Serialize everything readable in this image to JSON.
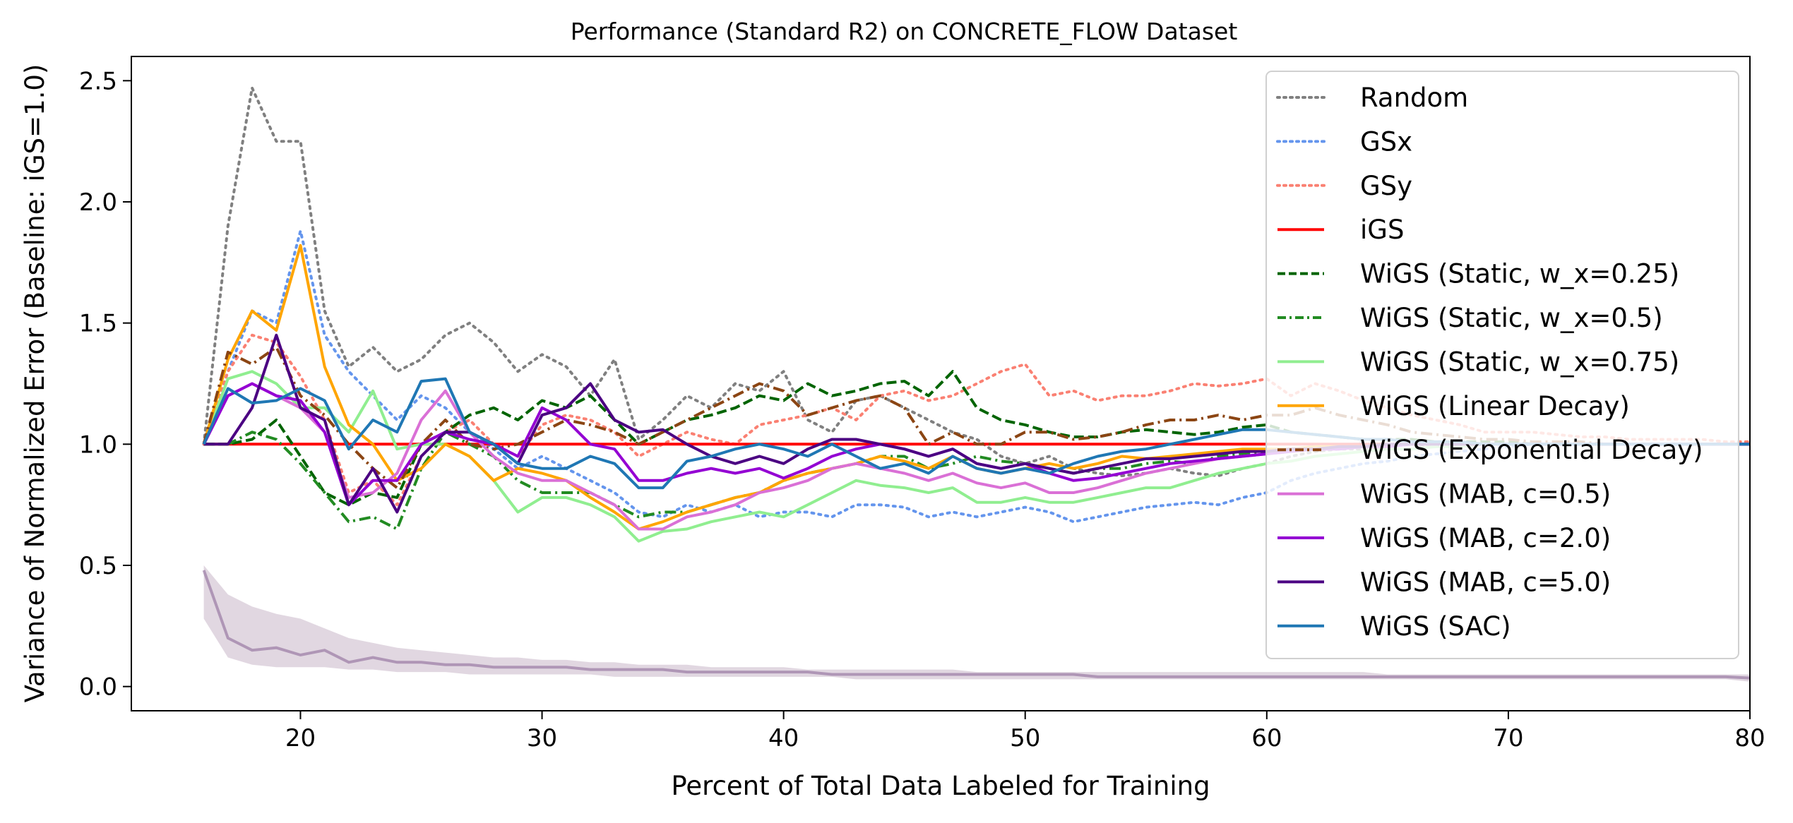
{
  "chart_data": {
    "type": "line",
    "title": "Performance (Standard R2) on CONCRETE_FLOW Dataset",
    "xlabel": "Percent of Total Data Labeled for Training",
    "ylabel": "Variance of Normalized Error (Baseline: iGS=1.0)",
    "xlim": [
      13,
      80
    ],
    "ylim": [
      -0.1,
      2.6
    ],
    "xticks": [
      20,
      30,
      40,
      50,
      60,
      70,
      80
    ],
    "yticks": [
      0.0,
      0.5,
      1.0,
      1.5,
      2.0,
      2.5
    ],
    "grid": false,
    "legend_position": "top-right",
    "x": [
      16,
      17,
      18,
      19,
      20,
      21,
      22,
      23,
      24,
      25,
      26,
      27,
      28,
      29,
      30,
      31,
      32,
      33,
      34,
      35,
      36,
      37,
      38,
      39,
      40,
      41,
      42,
      43,
      44,
      45,
      46,
      47,
      48,
      49,
      50,
      51,
      52,
      53,
      54,
      55,
      56,
      57,
      58,
      59,
      60,
      61,
      62,
      63,
      64,
      65,
      66,
      67,
      68,
      69,
      70,
      71,
      72,
      73,
      74,
      75,
      76,
      77,
      78,
      79,
      80
    ],
    "series": [
      {
        "name": "Random",
        "color": "#808080",
        "dash": "dotted",
        "values": [
          1.0,
          1.9,
          2.47,
          2.25,
          2.25,
          1.55,
          1.32,
          1.4,
          1.3,
          1.35,
          1.45,
          1.5,
          1.42,
          1.3,
          1.37,
          1.32,
          1.2,
          1.35,
          1.02,
          1.1,
          1.2,
          1.15,
          1.25,
          1.22,
          1.3,
          1.1,
          1.05,
          1.18,
          1.2,
          1.15,
          1.1,
          1.05,
          1.02,
          0.95,
          0.92,
          0.95,
          0.9,
          0.88,
          0.87,
          0.88,
          0.9,
          0.88,
          0.87,
          0.9,
          0.92,
          0.95,
          0.97,
          0.98,
          0.98,
          0.99,
          1.0,
          0.99,
          1.0,
          1.0,
          1.0,
          1.0,
          1.0,
          1.0,
          1.0,
          1.0,
          1.0,
          1.0,
          1.0,
          1.0,
          1.0
        ]
      },
      {
        "name": "GSx",
        "color": "#6495ed",
        "dash": "dotted",
        "values": [
          1.0,
          1.3,
          1.55,
          1.5,
          1.88,
          1.45,
          1.3,
          1.2,
          1.1,
          1.2,
          1.15,
          1.05,
          0.98,
          0.9,
          0.95,
          0.9,
          0.85,
          0.8,
          0.72,
          0.7,
          0.75,
          0.72,
          0.75,
          0.7,
          0.72,
          0.72,
          0.7,
          0.75,
          0.75,
          0.74,
          0.7,
          0.72,
          0.7,
          0.72,
          0.74,
          0.72,
          0.68,
          0.7,
          0.72,
          0.74,
          0.75,
          0.76,
          0.75,
          0.78,
          0.8,
          0.85,
          0.88,
          0.9,
          0.92,
          0.93,
          0.95,
          0.96,
          0.97,
          0.98,
          0.99,
          1.0,
          1.0,
          1.0,
          1.0,
          1.0,
          1.0,
          1.0,
          1.0,
          1.0,
          1.0
        ]
      },
      {
        "name": "GSy",
        "color": "#fa8072",
        "dash": "dotted",
        "values": [
          1.0,
          1.3,
          1.45,
          1.42,
          1.28,
          1.1,
          0.8,
          0.85,
          0.75,
          0.95,
          1.05,
          1.1,
          1.0,
          0.95,
          1.08,
          1.12,
          1.1,
          1.05,
          0.95,
          1.0,
          1.05,
          1.02,
          1.0,
          1.08,
          1.1,
          1.12,
          1.15,
          1.1,
          1.2,
          1.22,
          1.18,
          1.2,
          1.25,
          1.3,
          1.33,
          1.2,
          1.22,
          1.18,
          1.2,
          1.2,
          1.22,
          1.25,
          1.24,
          1.25,
          1.27,
          1.2,
          1.25,
          1.22,
          1.18,
          1.15,
          1.12,
          1.1,
          1.08,
          1.05,
          1.05,
          1.05,
          1.04,
          1.03,
          1.03,
          1.02,
          1.02,
          1.02,
          1.02,
          1.01,
          1.01
        ]
      },
      {
        "name": "iGS",
        "color": "#ff0000",
        "dash": "solid",
        "values": [
          1.0,
          1.0,
          1.0,
          1.0,
          1.0,
          1.0,
          1.0,
          1.0,
          1.0,
          1.0,
          1.0,
          1.0,
          1.0,
          1.0,
          1.0,
          1.0,
          1.0,
          1.0,
          1.0,
          1.0,
          1.0,
          1.0,
          1.0,
          1.0,
          1.0,
          1.0,
          1.0,
          1.0,
          1.0,
          1.0,
          1.0,
          1.0,
          1.0,
          1.0,
          1.0,
          1.0,
          1.0,
          1.0,
          1.0,
          1.0,
          1.0,
          1.0,
          1.0,
          1.0,
          1.0,
          1.0,
          1.0,
          1.0,
          1.0,
          1.0,
          1.0,
          1.0,
          1.0,
          1.0,
          1.0,
          1.0,
          1.0,
          1.0,
          1.0,
          1.0,
          1.0,
          1.0,
          1.0,
          1.0,
          1.0
        ]
      },
      {
        "name": "WiGS (Static, w_x=0.25)",
        "color": "#006400",
        "dash": "dashed",
        "values": [
          1.0,
          1.0,
          1.02,
          1.1,
          0.95,
          0.8,
          0.75,
          0.8,
          0.78,
          1.0,
          1.05,
          1.12,
          1.15,
          1.1,
          1.18,
          1.15,
          1.2,
          1.1,
          1.0,
          1.05,
          1.1,
          1.12,
          1.15,
          1.2,
          1.18,
          1.25,
          1.2,
          1.22,
          1.25,
          1.26,
          1.2,
          1.3,
          1.15,
          1.1,
          1.08,
          1.05,
          1.03,
          1.03,
          1.05,
          1.06,
          1.05,
          1.04,
          1.05,
          1.07,
          1.08,
          1.05,
          1.04,
          1.03,
          1.02,
          1.02,
          1.02,
          1.01,
          1.01,
          1.01,
          1.01,
          1.0,
          1.0,
          1.0,
          1.0,
          1.0,
          1.0,
          1.0,
          1.0,
          1.0,
          1.0
        ]
      },
      {
        "name": "WiGS (Static, w_x=0.5)",
        "color": "#228b22",
        "dash": "dashdot",
        "values": [
          1.0,
          1.0,
          1.05,
          1.02,
          0.92,
          0.8,
          0.68,
          0.7,
          0.65,
          0.9,
          1.05,
          1.0,
          0.95,
          0.85,
          0.8,
          0.8,
          0.8,
          0.75,
          0.7,
          0.72,
          0.72,
          0.75,
          0.78,
          0.8,
          0.85,
          0.88,
          0.9,
          0.92,
          0.95,
          0.95,
          0.9,
          0.92,
          0.95,
          0.93,
          0.92,
          0.9,
          0.88,
          0.9,
          0.9,
          0.92,
          0.93,
          0.92,
          0.95,
          0.96,
          0.97,
          0.98,
          0.98,
          0.99,
          0.99,
          1.0,
          1.0,
          1.0,
          1.0,
          1.0,
          1.0,
          1.0,
          1.0,
          1.0,
          1.0,
          1.0,
          1.0,
          1.0,
          1.0,
          1.0,
          1.0
        ]
      },
      {
        "name": "WiGS (Static, w_x=0.75)",
        "color": "#90ee90",
        "dash": "solid",
        "values": [
          1.0,
          1.27,
          1.3,
          1.25,
          1.15,
          1.15,
          1.05,
          1.22,
          0.98,
          1.0,
          1.0,
          0.95,
          0.85,
          0.72,
          0.78,
          0.78,
          0.75,
          0.7,
          0.6,
          0.64,
          0.65,
          0.68,
          0.7,
          0.72,
          0.7,
          0.75,
          0.8,
          0.85,
          0.83,
          0.82,
          0.8,
          0.82,
          0.76,
          0.76,
          0.78,
          0.76,
          0.76,
          0.78,
          0.8,
          0.82,
          0.82,
          0.85,
          0.88,
          0.9,
          0.92,
          0.93,
          0.95,
          0.96,
          0.97,
          0.98,
          0.98,
          0.99,
          0.99,
          1.0,
          1.0,
          1.0,
          1.0,
          1.0,
          1.0,
          1.0,
          1.0,
          1.0,
          1.0,
          1.0,
          1.0
        ]
      },
      {
        "name": "WiGS (Linear Decay)",
        "color": "#ffa500",
        "dash": "solid",
        "values": [
          1.0,
          1.35,
          1.55,
          1.47,
          1.82,
          1.32,
          1.08,
          1.0,
          0.85,
          0.9,
          1.0,
          0.95,
          0.85,
          0.9,
          0.88,
          0.85,
          0.78,
          0.72,
          0.65,
          0.68,
          0.72,
          0.75,
          0.78,
          0.8,
          0.85,
          0.88,
          0.9,
          0.92,
          0.95,
          0.93,
          0.9,
          0.95,
          0.9,
          0.88,
          0.9,
          0.92,
          0.9,
          0.92,
          0.95,
          0.94,
          0.95,
          0.96,
          0.97,
          0.98,
          0.98,
          0.98,
          0.99,
          0.99,
          0.99,
          1.0,
          1.0,
          1.0,
          1.0,
          1.0,
          1.0,
          1.0,
          1.0,
          1.0,
          1.0,
          1.0,
          1.0,
          1.0,
          1.0,
          1.0,
          1.0
        ]
      },
      {
        "name": "WiGS (Exponential Decay)",
        "color": "#8b4513",
        "dash": "dashdot",
        "values": [
          1.0,
          1.38,
          1.33,
          1.4,
          1.2,
          1.12,
          1.0,
          0.9,
          0.82,
          1.0,
          1.1,
          1.0,
          0.98,
          1.0,
          1.05,
          1.1,
          1.08,
          1.05,
          1.0,
          1.05,
          1.1,
          1.15,
          1.2,
          1.25,
          1.22,
          1.12,
          1.15,
          1.18,
          1.2,
          1.15,
          1.0,
          1.05,
          1.0,
          1.0,
          1.05,
          1.05,
          1.02,
          1.03,
          1.05,
          1.08,
          1.1,
          1.1,
          1.12,
          1.1,
          1.12,
          1.12,
          1.15,
          1.12,
          1.1,
          1.08,
          1.05,
          1.04,
          1.03,
          1.02,
          1.02,
          1.01,
          1.01,
          1.01,
          1.0,
          1.0,
          1.0,
          1.0,
          1.0,
          1.0,
          1.0
        ]
      },
      {
        "name": "WiGS (MAB, c=0.5)",
        "color": "#da70d6",
        "dash": "solid",
        "values": [
          1.0,
          1.2,
          1.25,
          1.2,
          1.15,
          1.05,
          0.78,
          0.8,
          0.88,
          1.1,
          1.22,
          1.05,
          0.95,
          0.88,
          0.85,
          0.85,
          0.8,
          0.75,
          0.65,
          0.65,
          0.7,
          0.72,
          0.75,
          0.8,
          0.82,
          0.85,
          0.9,
          0.92,
          0.9,
          0.88,
          0.85,
          0.88,
          0.84,
          0.82,
          0.84,
          0.8,
          0.8,
          0.82,
          0.85,
          0.88,
          0.9,
          0.92,
          0.94,
          0.95,
          0.96,
          0.97,
          0.98,
          0.98,
          0.99,
          0.99,
          1.0,
          1.0,
          1.0,
          1.0,
          1.0,
          1.0,
          1.0,
          1.0,
          1.0,
          1.0,
          1.0,
          1.0,
          1.0,
          1.0,
          1.0
        ]
      },
      {
        "name": "WiGS (MAB, c=2.0)",
        "color": "#9400d3",
        "dash": "solid",
        "values": [
          1.0,
          1.2,
          1.25,
          1.2,
          1.18,
          1.05,
          0.75,
          0.85,
          0.85,
          1.0,
          1.05,
          1.02,
          1.0,
          0.95,
          1.15,
          1.1,
          1.0,
          0.98,
          0.85,
          0.85,
          0.88,
          0.9,
          0.88,
          0.9,
          0.86,
          0.9,
          0.95,
          0.98,
          1.0,
          0.98,
          0.95,
          0.98,
          0.92,
          0.9,
          0.92,
          0.88,
          0.85,
          0.86,
          0.88,
          0.9,
          0.92,
          0.93,
          0.94,
          0.95,
          0.96,
          0.97,
          0.98,
          0.98,
          0.99,
          0.99,
          1.0,
          1.0,
          1.0,
          1.0,
          1.0,
          1.0,
          1.0,
          1.0,
          1.0,
          1.0,
          1.0,
          1.0,
          1.0,
          1.0,
          1.0
        ]
      },
      {
        "name": "WiGS (MAB, c=5.0)",
        "color": "#4b0082",
        "dash": "solid",
        "values": [
          1.0,
          1.0,
          1.15,
          1.45,
          1.15,
          1.1,
          0.75,
          0.9,
          0.72,
          0.95,
          1.05,
          1.05,
          1.0,
          0.92,
          1.12,
          1.15,
          1.25,
          1.1,
          1.05,
          1.06,
          1.0,
          0.95,
          0.92,
          0.95,
          0.92,
          0.98,
          1.02,
          1.02,
          1.0,
          0.98,
          0.95,
          0.98,
          0.92,
          0.9,
          0.92,
          0.9,
          0.88,
          0.9,
          0.92,
          0.94,
          0.94,
          0.95,
          0.96,
          0.97,
          0.97,
          0.98,
          0.98,
          0.99,
          0.99,
          1.0,
          1.0,
          1.0,
          1.0,
          1.0,
          1.0,
          1.0,
          1.0,
          1.0,
          1.0,
          1.0,
          1.0,
          1.0,
          1.0,
          1.0,
          1.0
        ]
      },
      {
        "name": "WiGS (SAC)",
        "color": "#1f77b4",
        "dash": "solid",
        "values": [
          1.0,
          1.23,
          1.17,
          1.18,
          1.23,
          1.18,
          0.98,
          1.1,
          1.05,
          1.26,
          1.27,
          1.05,
          1.0,
          0.92,
          0.9,
          0.9,
          0.95,
          0.92,
          0.82,
          0.82,
          0.93,
          0.95,
          0.98,
          1.0,
          0.98,
          0.95,
          1.0,
          0.95,
          0.9,
          0.92,
          0.88,
          0.95,
          0.9,
          0.88,
          0.9,
          0.88,
          0.92,
          0.95,
          0.97,
          0.98,
          1.0,
          1.02,
          1.04,
          1.06,
          1.06,
          1.05,
          1.04,
          1.03,
          1.02,
          1.02,
          1.01,
          1.01,
          1.01,
          1.0,
          1.0,
          1.0,
          1.0,
          1.0,
          1.0,
          1.0,
          1.0,
          1.0,
          1.0,
          1.0,
          1.0
        ]
      }
    ],
    "variance_band": {
      "upper": [
        0.5,
        0.38,
        0.33,
        0.3,
        0.28,
        0.24,
        0.2,
        0.18,
        0.16,
        0.15,
        0.14,
        0.13,
        0.12,
        0.12,
        0.11,
        0.11,
        0.1,
        0.1,
        0.09,
        0.09,
        0.09,
        0.08,
        0.08,
        0.08,
        0.08,
        0.07,
        0.07,
        0.07,
        0.07,
        0.07,
        0.07,
        0.07,
        0.06,
        0.06,
        0.06,
        0.06,
        0.06,
        0.06,
        0.06,
        0.06,
        0.06,
        0.06,
        0.06,
        0.06,
        0.06,
        0.06,
        0.06,
        0.06,
        0.06,
        0.05,
        0.05,
        0.05,
        0.05,
        0.05,
        0.05,
        0.05,
        0.05,
        0.05,
        0.05,
        0.05,
        0.05,
        0.05,
        0.05,
        0.05,
        0.05
      ],
      "lower": [
        0.28,
        0.12,
        0.09,
        0.08,
        0.08,
        0.08,
        0.07,
        0.07,
        0.06,
        0.06,
        0.06,
        0.05,
        0.05,
        0.05,
        0.05,
        0.05,
        0.05,
        0.04,
        0.04,
        0.04,
        0.04,
        0.04,
        0.04,
        0.04,
        0.04,
        0.04,
        0.04,
        0.03,
        0.03,
        0.03,
        0.03,
        0.03,
        0.03,
        0.03,
        0.03,
        0.03,
        0.03,
        0.03,
        0.03,
        0.03,
        0.03,
        0.03,
        0.03,
        0.03,
        0.03,
        0.03,
        0.03,
        0.03,
        0.03,
        0.03,
        0.03,
        0.03,
        0.03,
        0.03,
        0.03,
        0.03,
        0.03,
        0.03,
        0.03,
        0.03,
        0.03,
        0.03,
        0.03,
        0.03,
        0.02
      ],
      "mid": [
        0.48,
        0.2,
        0.15,
        0.16,
        0.13,
        0.15,
        0.1,
        0.12,
        0.1,
        0.1,
        0.09,
        0.09,
        0.08,
        0.08,
        0.08,
        0.08,
        0.07,
        0.07,
        0.07,
        0.07,
        0.06,
        0.06,
        0.06,
        0.06,
        0.06,
        0.06,
        0.05,
        0.05,
        0.05,
        0.05,
        0.05,
        0.05,
        0.05,
        0.05,
        0.05,
        0.05,
        0.05,
        0.04,
        0.04,
        0.04,
        0.04,
        0.04,
        0.04,
        0.04,
        0.04,
        0.04,
        0.04,
        0.04,
        0.04,
        0.04,
        0.04,
        0.04,
        0.04,
        0.04,
        0.04,
        0.04,
        0.04,
        0.04,
        0.04,
        0.04,
        0.04,
        0.04,
        0.04,
        0.04,
        0.035
      ]
    }
  }
}
